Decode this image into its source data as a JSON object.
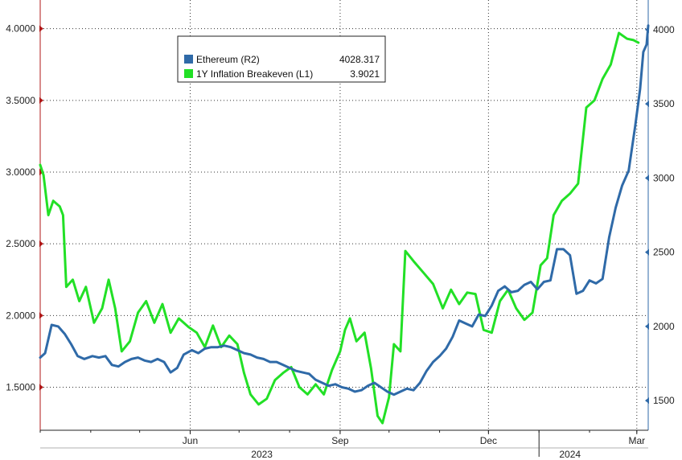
{
  "chart_data": {
    "type": "line",
    "legend": {
      "placement": "top-center",
      "entries": [
        {
          "name": "Ethereum (R2)",
          "value": "4028.317",
          "color": "#2f6aa8"
        },
        {
          "name": "1Y Inflation Breakeven (L1)",
          "value": "3.9021",
          "color": "#22e026"
        }
      ]
    },
    "left_axis": {
      "ylim": [
        1.2,
        4.2
      ],
      "ticks": [
        1.5,
        2.0,
        2.5,
        3.0,
        3.5,
        4.0
      ],
      "tick_labels": [
        "1.5000",
        "2.0000",
        "2.5000",
        "3.0000",
        "3.5000",
        "4.0000"
      ]
    },
    "right_axis": {
      "ylim": [
        1300,
        4200
      ],
      "ticks": [
        1500,
        2000,
        2500,
        3000,
        3500,
        4000
      ],
      "tick_labels": [
        "1500",
        "2000",
        "2500",
        "3000",
        "3500",
        "4000"
      ]
    },
    "x_axis": {
      "start": "2023-03-01",
      "end": "2024-03-08",
      "month_labels": [
        {
          "date": "2023-06-01",
          "label": "Jun"
        },
        {
          "date": "2023-09-01",
          "label": "Sep"
        },
        {
          "date": "2023-12-01",
          "label": "Dec"
        },
        {
          "date": "2024-03-01",
          "label": "Mar"
        }
      ],
      "year_labels": [
        {
          "date": "2023-07-15",
          "label": "2023"
        },
        {
          "date": "2024-01-20",
          "label": "2024"
        }
      ],
      "year_separator": "2024-01-01"
    },
    "grid": true,
    "series": [
      {
        "name": "1Y Inflation Breakeven (L1)",
        "axis": "left",
        "color": "#22e026",
        "points": [
          [
            "2023-03-01",
            3.05
          ],
          [
            "2023-03-03",
            2.98
          ],
          [
            "2023-03-06",
            2.7
          ],
          [
            "2023-03-09",
            2.8
          ],
          [
            "2023-03-13",
            2.76
          ],
          [
            "2023-03-15",
            2.7
          ],
          [
            "2023-03-17",
            2.2
          ],
          [
            "2023-03-21",
            2.25
          ],
          [
            "2023-03-25",
            2.1
          ],
          [
            "2023-03-29",
            2.2
          ],
          [
            "2023-04-03",
            1.95
          ],
          [
            "2023-04-08",
            2.05
          ],
          [
            "2023-04-12",
            2.25
          ],
          [
            "2023-04-16",
            2.05
          ],
          [
            "2023-04-20",
            1.75
          ],
          [
            "2023-04-25",
            1.82
          ],
          [
            "2023-04-30",
            2.02
          ],
          [
            "2023-05-05",
            2.1
          ],
          [
            "2023-05-10",
            1.95
          ],
          [
            "2023-05-15",
            2.08
          ],
          [
            "2023-05-20",
            1.88
          ],
          [
            "2023-05-25",
            1.98
          ],
          [
            "2023-05-31",
            1.92
          ],
          [
            "2023-06-05",
            1.88
          ],
          [
            "2023-06-10",
            1.78
          ],
          [
            "2023-06-15",
            1.93
          ],
          [
            "2023-06-20",
            1.78
          ],
          [
            "2023-06-25",
            1.86
          ],
          [
            "2023-06-30",
            1.8
          ],
          [
            "2023-07-04",
            1.6
          ],
          [
            "2023-07-08",
            1.45
          ],
          [
            "2023-07-13",
            1.38
          ],
          [
            "2023-07-18",
            1.42
          ],
          [
            "2023-07-23",
            1.55
          ],
          [
            "2023-07-28",
            1.6
          ],
          [
            "2023-08-02",
            1.64
          ],
          [
            "2023-08-07",
            1.5
          ],
          [
            "2023-08-12",
            1.45
          ],
          [
            "2023-08-17",
            1.52
          ],
          [
            "2023-08-22",
            1.45
          ],
          [
            "2023-08-27",
            1.62
          ],
          [
            "2023-09-01",
            1.75
          ],
          [
            "2023-09-04",
            1.9
          ],
          [
            "2023-09-07",
            1.98
          ],
          [
            "2023-09-11",
            1.82
          ],
          [
            "2023-09-16",
            1.88
          ],
          [
            "2023-09-20",
            1.63
          ],
          [
            "2023-09-24",
            1.3
          ],
          [
            "2023-09-27",
            1.25
          ],
          [
            "2023-10-01",
            1.43
          ],
          [
            "2023-10-04",
            1.8
          ],
          [
            "2023-10-08",
            1.75
          ],
          [
            "2023-10-11",
            2.45
          ],
          [
            "2023-10-16",
            2.38
          ],
          [
            "2023-10-22",
            2.3
          ],
          [
            "2023-10-28",
            2.22
          ],
          [
            "2023-11-03",
            2.05
          ],
          [
            "2023-11-08",
            2.18
          ],
          [
            "2023-11-13",
            2.08
          ],
          [
            "2023-11-18",
            2.16
          ],
          [
            "2023-11-23",
            2.15
          ],
          [
            "2023-11-28",
            1.9
          ],
          [
            "2023-12-03",
            1.88
          ],
          [
            "2023-12-08",
            2.1
          ],
          [
            "2023-12-13",
            2.18
          ],
          [
            "2023-12-18",
            2.05
          ],
          [
            "2023-12-23",
            1.97
          ],
          [
            "2023-12-28",
            2.02
          ],
          [
            "2024-01-02",
            2.35
          ],
          [
            "2024-01-06",
            2.4
          ],
          [
            "2024-01-10",
            2.7
          ],
          [
            "2024-01-15",
            2.8
          ],
          [
            "2024-01-20",
            2.85
          ],
          [
            "2024-01-25",
            2.92
          ],
          [
            "2024-01-30",
            3.45
          ],
          [
            "2024-02-04",
            3.5
          ],
          [
            "2024-02-09",
            3.65
          ],
          [
            "2024-02-14",
            3.75
          ],
          [
            "2024-02-19",
            3.97
          ],
          [
            "2024-02-24",
            3.93
          ],
          [
            "2024-02-28",
            3.92
          ],
          [
            "2024-03-02",
            3.9021
          ]
        ]
      },
      {
        "name": "Ethereum (R2)",
        "axis": "right",
        "color": "#2f6aa8",
        "points": [
          [
            "2023-03-01",
            1790
          ],
          [
            "2023-03-04",
            1820
          ],
          [
            "2023-03-08",
            2010
          ],
          [
            "2023-03-12",
            2000
          ],
          [
            "2023-03-16",
            1950
          ],
          [
            "2023-03-20",
            1880
          ],
          [
            "2023-03-24",
            1800
          ],
          [
            "2023-03-28",
            1780
          ],
          [
            "2023-04-02",
            1800
          ],
          [
            "2023-04-06",
            1790
          ],
          [
            "2023-04-10",
            1800
          ],
          [
            "2023-04-14",
            1740
          ],
          [
            "2023-04-18",
            1730
          ],
          [
            "2023-04-22",
            1760
          ],
          [
            "2023-04-26",
            1780
          ],
          [
            "2023-04-30",
            1790
          ],
          [
            "2023-05-04",
            1770
          ],
          [
            "2023-05-08",
            1760
          ],
          [
            "2023-05-12",
            1780
          ],
          [
            "2023-05-16",
            1760
          ],
          [
            "2023-05-20",
            1690
          ],
          [
            "2023-05-24",
            1720
          ],
          [
            "2023-05-28",
            1810
          ],
          [
            "2023-06-02",
            1840
          ],
          [
            "2023-06-06",
            1820
          ],
          [
            "2023-06-10",
            1850
          ],
          [
            "2023-06-14",
            1860
          ],
          [
            "2023-06-18",
            1860
          ],
          [
            "2023-06-22",
            1870
          ],
          [
            "2023-06-26",
            1860
          ],
          [
            "2023-06-30",
            1840
          ],
          [
            "2023-07-04",
            1820
          ],
          [
            "2023-07-08",
            1810
          ],
          [
            "2023-07-12",
            1790
          ],
          [
            "2023-07-16",
            1780
          ],
          [
            "2023-07-20",
            1760
          ],
          [
            "2023-07-24",
            1760
          ],
          [
            "2023-07-28",
            1740
          ],
          [
            "2023-08-01",
            1720
          ],
          [
            "2023-08-05",
            1700
          ],
          [
            "2023-08-09",
            1690
          ],
          [
            "2023-08-13",
            1680
          ],
          [
            "2023-08-17",
            1640
          ],
          [
            "2023-08-21",
            1620
          ],
          [
            "2023-08-25",
            1600
          ],
          [
            "2023-08-29",
            1610
          ],
          [
            "2023-09-02",
            1590
          ],
          [
            "2023-09-06",
            1580
          ],
          [
            "2023-09-10",
            1560
          ],
          [
            "2023-09-14",
            1570
          ],
          [
            "2023-09-18",
            1600
          ],
          [
            "2023-09-22",
            1620
          ],
          [
            "2023-09-26",
            1590
          ],
          [
            "2023-09-30",
            1560
          ],
          [
            "2023-10-04",
            1540
          ],
          [
            "2023-10-08",
            1560
          ],
          [
            "2023-10-12",
            1580
          ],
          [
            "2023-10-16",
            1570
          ],
          [
            "2023-10-20",
            1620
          ],
          [
            "2023-10-24",
            1700
          ],
          [
            "2023-10-28",
            1760
          ],
          [
            "2023-11-01",
            1800
          ],
          [
            "2023-11-05",
            1850
          ],
          [
            "2023-11-09",
            1930
          ],
          [
            "2023-11-13",
            2040
          ],
          [
            "2023-11-17",
            2020
          ],
          [
            "2023-11-21",
            2000
          ],
          [
            "2023-11-25",
            2080
          ],
          [
            "2023-11-29",
            2070
          ],
          [
            "2023-12-03",
            2140
          ],
          [
            "2023-12-07",
            2240
          ],
          [
            "2023-12-11",
            2270
          ],
          [
            "2023-12-15",
            2230
          ],
          [
            "2023-12-19",
            2240
          ],
          [
            "2023-12-23",
            2280
          ],
          [
            "2023-12-27",
            2300
          ],
          [
            "2023-12-31",
            2250
          ],
          [
            "2024-01-04",
            2300
          ],
          [
            "2024-01-08",
            2310
          ],
          [
            "2024-01-12",
            2520
          ],
          [
            "2024-01-16",
            2520
          ],
          [
            "2024-01-20",
            2480
          ],
          [
            "2024-01-24",
            2220
          ],
          [
            "2024-01-28",
            2240
          ],
          [
            "2024-02-01",
            2310
          ],
          [
            "2024-02-05",
            2290
          ],
          [
            "2024-02-09",
            2320
          ],
          [
            "2024-02-13",
            2600
          ],
          [
            "2024-02-17",
            2800
          ],
          [
            "2024-02-21",
            2950
          ],
          [
            "2024-02-25",
            3050
          ],
          [
            "2024-02-29",
            3350
          ],
          [
            "2024-03-03",
            3600
          ],
          [
            "2024-03-05",
            3850
          ],
          [
            "2024-03-07",
            3900
          ],
          [
            "2024-03-08",
            4028.317
          ]
        ]
      }
    ]
  }
}
